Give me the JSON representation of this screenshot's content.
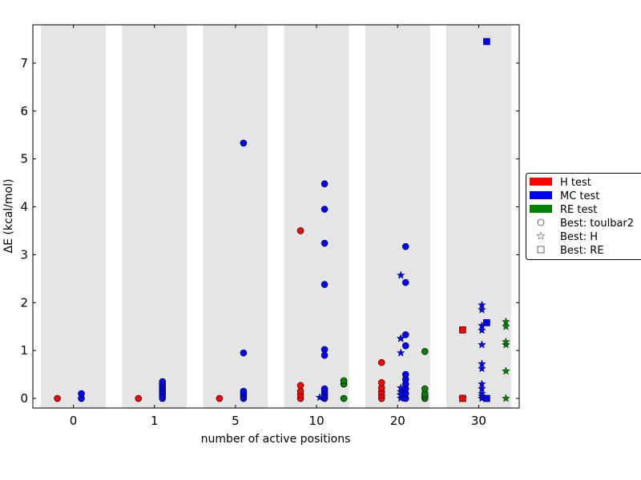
{
  "chart_data": {
    "type": "scatter",
    "title": "",
    "xlabel": "number of active positions",
    "ylabel": "ΔE (kcal/mol)",
    "ylim": [
      -0.2,
      7.8
    ],
    "y_ticks": [
      "0",
      "1",
      "2",
      "3",
      "4",
      "5",
      "6",
      "7"
    ],
    "y_tick_values": [
      0,
      1,
      2,
      3,
      4,
      5,
      6,
      7
    ],
    "groups": [
      "0",
      "1",
      "5",
      "10",
      "20",
      "30"
    ],
    "colors": {
      "H test": "#ff0000",
      "MC test": "#0000ff",
      "RE test": "#008000"
    },
    "legend_position": "right",
    "legend": [
      {
        "label": "H test",
        "kind": "patch",
        "color": "#ff0000"
      },
      {
        "label": "MC test",
        "kind": "patch",
        "color": "#0000ff"
      },
      {
        "label": "RE test",
        "kind": "patch",
        "color": "#008000"
      },
      {
        "label": "Best: toulbar2",
        "kind": "marker",
        "marker": "circle"
      },
      {
        "label": "Best: H",
        "kind": "marker",
        "marker": "star"
      },
      {
        "label": "Best: RE",
        "kind": "marker",
        "marker": "square"
      }
    ],
    "series": [
      {
        "test": "H test",
        "group": "0",
        "marker": "circle",
        "x": 0,
        "values": [
          0
        ]
      },
      {
        "test": "MC test",
        "group": "0",
        "marker": "circle",
        "x": 0,
        "values": [
          0,
          0.1
        ]
      },
      {
        "test": "H test",
        "group": "1",
        "marker": "circle",
        "x": 1,
        "values": [
          0
        ]
      },
      {
        "test": "MC test",
        "group": "1",
        "marker": "circle",
        "x": 1,
        "values": [
          0,
          0.05,
          0.1,
          0.15,
          0.2,
          0.25,
          0.3,
          0.35
        ]
      },
      {
        "test": "H test",
        "group": "5",
        "marker": "circle",
        "x": 5,
        "values": [
          0
        ]
      },
      {
        "test": "MC test",
        "group": "5",
        "marker": "circle",
        "x": 5,
        "values": [
          0,
          0.05,
          0.1,
          0.15,
          0.95,
          5.33
        ]
      },
      {
        "test": "H test",
        "group": "10",
        "marker": "circle",
        "x": 10,
        "values": [
          0,
          0.08,
          0.15,
          0.27,
          3.5
        ]
      },
      {
        "test": "MC test",
        "group": "10",
        "marker": "star",
        "x": 10,
        "values": [
          0.02
        ]
      },
      {
        "test": "MC test",
        "group": "10",
        "marker": "circle",
        "x": 10,
        "values": [
          0,
          0.05,
          0.1,
          0.15,
          0.2,
          0.9,
          1.02,
          2.38,
          3.24,
          3.95,
          4.48
        ]
      },
      {
        "test": "RE test",
        "group": "10",
        "marker": "circle",
        "x": 10,
        "values": [
          0,
          0.3,
          0.37
        ]
      },
      {
        "test": "H test",
        "group": "20",
        "marker": "circle",
        "x": 20,
        "values": [
          0,
          0.07,
          0.14,
          0.22,
          0.33,
          0.75
        ]
      },
      {
        "test": "MC test",
        "group": "20",
        "marker": "star",
        "x": 20,
        "values": [
          0,
          0.07,
          0.14,
          0.22,
          0.95,
          1.25,
          2.57
        ]
      },
      {
        "test": "MC test",
        "group": "20",
        "marker": "circle",
        "x": 20,
        "values": [
          0,
          0.1,
          0.2,
          0.3,
          0.4,
          0.5,
          1.1,
          1.33,
          2.42,
          3.17
        ]
      },
      {
        "test": "MC test",
        "group": "20",
        "marker": "star",
        "x": 20,
        "values": [
          0.08,
          1.25
        ]
      },
      {
        "test": "RE test",
        "group": "20",
        "marker": "circle",
        "x": 20,
        "values": [
          0,
          0.05,
          0.1,
          0.2,
          0.98
        ]
      },
      {
        "test": "H test",
        "group": "30",
        "marker": "star",
        "x": 30,
        "values": [
          0
        ]
      },
      {
        "test": "H test",
        "group": "30",
        "marker": "square",
        "x": 30,
        "values": [
          0,
          1.43
        ]
      },
      {
        "test": "MC test",
        "group": "30",
        "marker": "star",
        "x": 30,
        "values": [
          0,
          0.05,
          0.1,
          0.2,
          0.3,
          0.62,
          0.72,
          1.12,
          1.42,
          1.52,
          1.85,
          1.95
        ]
      },
      {
        "test": "MC test",
        "group": "30",
        "marker": "square",
        "x": 30,
        "values": [
          0,
          1.58,
          7.45
        ]
      },
      {
        "test": "RE test",
        "group": "30",
        "marker": "star",
        "x": 30,
        "values": [
          0,
          0.57,
          1.12,
          1.18,
          1.5,
          1.6
        ]
      }
    ]
  }
}
